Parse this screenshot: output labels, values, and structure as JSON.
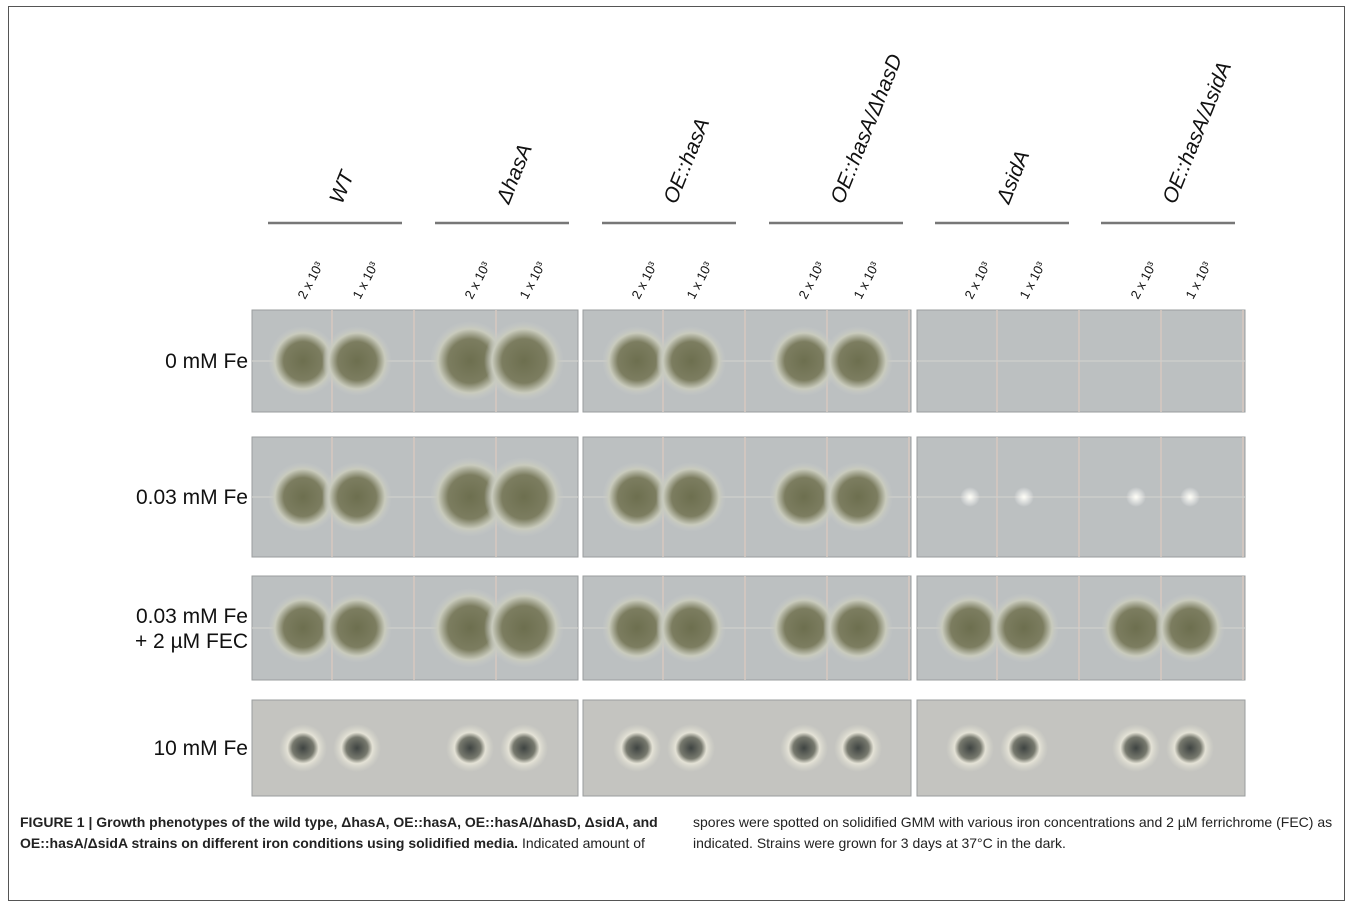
{
  "strains": [
    "WT",
    "ΔhasA",
    "OE::hasA",
    "OE::hasA/ΔhasD",
    "ΔsidA",
    "OE::hasA/ΔsidA"
  ],
  "dilutions": [
    "2 x 10³",
    "1 x 10³"
  ],
  "conditions": [
    [
      "0 mM Fe"
    ],
    [
      "0.03 mM Fe"
    ],
    [
      "0.03 mM Fe",
      "+ 2 µM FEC"
    ],
    [
      "10 mM Fe"
    ]
  ],
  "caption": {
    "title": "FIGURE 1 | Growth phenotypes of the wild type, ΔhasA, OE::hasA, OE::hasA/ΔhasD, ΔsidA, and OE::hasA/ΔsidA strains on different iron conditions using solidified media.",
    "body": "Indicated amount of spores were spotted on solidified GMM with various iron concentrations and 2 µM ferrichrome (FEC) as indicated. Strains were grown for 3 days at 37°C in the dark."
  }
}
